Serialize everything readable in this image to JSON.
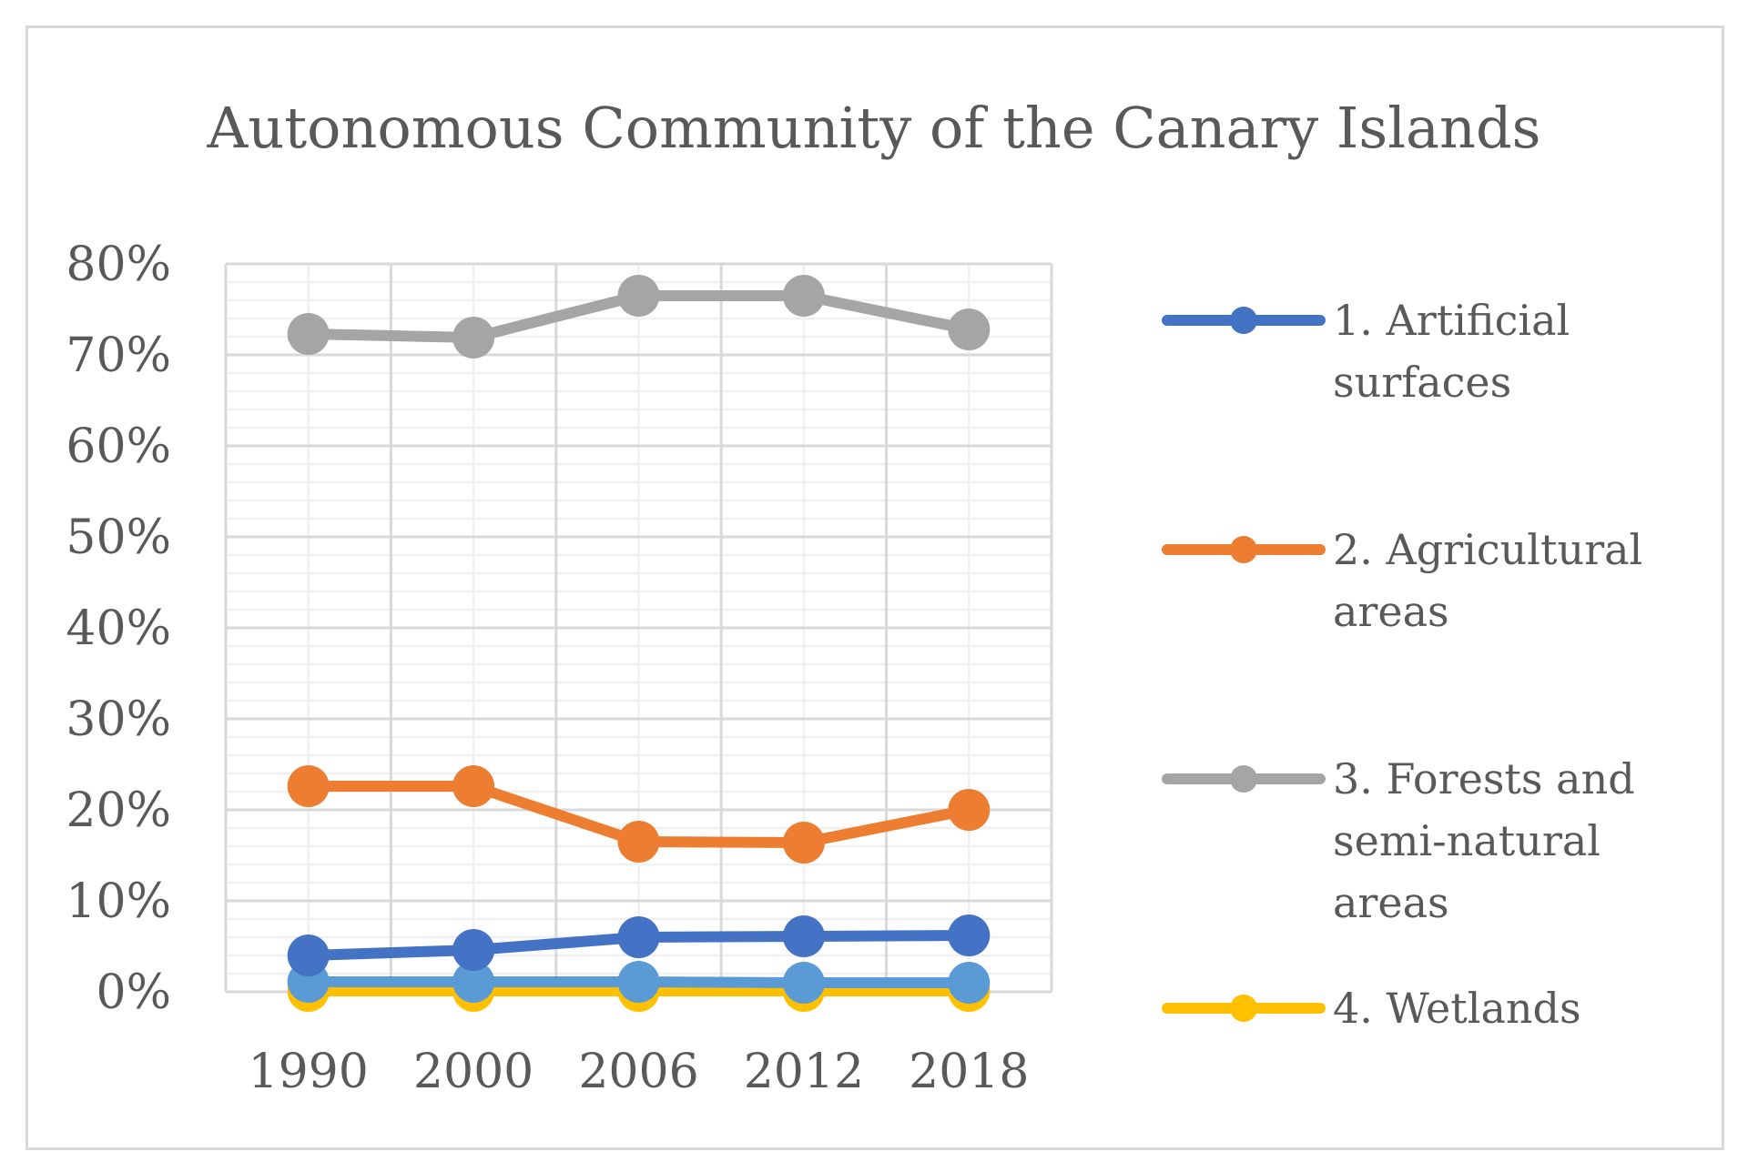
{
  "chart_data": {
    "type": "line",
    "title": "Autonomous Community of the Canary Islands",
    "xlabel": "",
    "ylabel": "",
    "categories": [
      "1990",
      "2000",
      "2006",
      "2012",
      "2018"
    ],
    "y_ticks": [
      "0%",
      "10%",
      "20%",
      "30%",
      "40%",
      "50%",
      "60%",
      "70%",
      "80%"
    ],
    "ylim": [
      0,
      80
    ],
    "grid": true,
    "legend_position": "right",
    "series": [
      {
        "name": "1. Artificial surfaces",
        "legend_lines": [
          "1. Artificial",
          "surfaces"
        ],
        "color": "#4472c4",
        "values": [
          4.0,
          4.6,
          6.0,
          6.1,
          6.2
        ]
      },
      {
        "name": "2. Agricultural areas",
        "legend_lines": [
          "2. Agricultural",
          "areas"
        ],
        "color": "#ed7d31",
        "values": [
          22.6,
          22.6,
          16.5,
          16.4,
          20.0
        ]
      },
      {
        "name": "3. Forests and semi-natural areas",
        "legend_lines": [
          "3. Forests and",
          "semi-natural",
          "areas"
        ],
        "color": "#a5a5a5",
        "values": [
          72.3,
          71.9,
          76.5,
          76.5,
          72.8
        ]
      },
      {
        "name": "4. Wetlands",
        "legend_lines": [
          "4. Wetlands"
        ],
        "color": "#ffc000",
        "values": [
          0.1,
          0.1,
          0.1,
          0.1,
          0.1
        ]
      },
      {
        "name": "",
        "legend_lines": [],
        "color": "#5b9bd5",
        "values": [
          1.1,
          1.1,
          1.1,
          1.0,
          1.0
        ]
      }
    ]
  }
}
